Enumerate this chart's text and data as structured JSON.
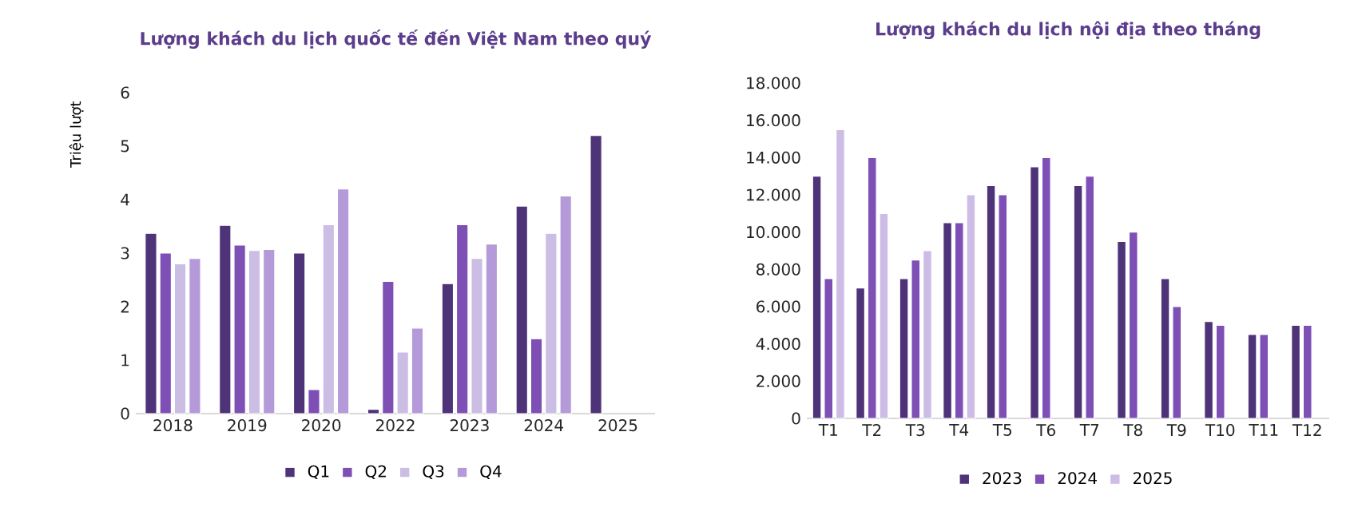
{
  "chart_data": [
    {
      "type": "bar",
      "title": "Lượng khách du lịch quốc tế đến Việt Nam theo quý",
      "ylabel": "Triệu lượt",
      "categories": [
        "2018",
        "2019",
        "2020",
        "2022",
        "2023",
        "2024",
        "2025"
      ],
      "series": [
        {
          "name": "Q1",
          "color": "#4f3379",
          "values": [
            3.37,
            3.52,
            3.0,
            0.08,
            2.43,
            3.88,
            5.2
          ]
        },
        {
          "name": "Q2",
          "color": "#7e4fb5",
          "values": [
            3.0,
            3.15,
            0.45,
            2.47,
            3.53,
            1.4,
            null
          ]
        },
        {
          "name": "Q3",
          "color": "#cbbde3",
          "values": [
            2.8,
            3.05,
            3.53,
            1.15,
            2.9,
            3.37,
            null
          ]
        },
        {
          "name": "Q4",
          "color": "#b49ad8",
          "values": [
            2.9,
            3.07,
            4.2,
            1.6,
            3.17,
            4.07,
            null
          ]
        }
      ],
      "ylim": [
        0,
        6
      ],
      "yticks": [
        0,
        1,
        2,
        3,
        4,
        5,
        6
      ],
      "legend": "bottom"
    },
    {
      "type": "bar",
      "title": "Lượng khách du lịch nội địa theo tháng",
      "categories": [
        "T1",
        "T2",
        "T3",
        "T4",
        "T5",
        "T6",
        "T7",
        "T8",
        "T9",
        "T10",
        "T11",
        "T12"
      ],
      "series": [
        {
          "name": "2023",
          "color": "#4f3379",
          "values": [
            13000,
            7000,
            7500,
            10500,
            12500,
            13500,
            12500,
            9500,
            7500,
            5200,
            4500,
            5000
          ]
        },
        {
          "name": "2024",
          "color": "#7e4fb5",
          "values": [
            7500,
            14000,
            8500,
            10500,
            12000,
            14000,
            13000,
            10000,
            6000,
            5000,
            4500,
            5000
          ]
        },
        {
          "name": "2025",
          "color": "#cdbde6",
          "values": [
            15500,
            11000,
            9000,
            12000,
            null,
            null,
            null,
            null,
            null,
            null,
            null,
            null
          ]
        }
      ],
      "ylim": [
        0,
        18000
      ],
      "yticks": [
        {
          "value": 0,
          "label": "0"
        },
        {
          "value": 2000,
          "label": "2.000"
        },
        {
          "value": 4000,
          "label": "4.000"
        },
        {
          "value": 6000,
          "label": "6.000"
        },
        {
          "value": 8000,
          "label": "8.000"
        },
        {
          "value": 10000,
          "label": "10.000"
        },
        {
          "value": 12000,
          "label": "12.000"
        },
        {
          "value": 14000,
          "label": "14.000"
        },
        {
          "value": 16000,
          "label": "16.000"
        },
        {
          "value": 18000,
          "label": "18.000"
        }
      ],
      "legend": "bottom"
    }
  ]
}
